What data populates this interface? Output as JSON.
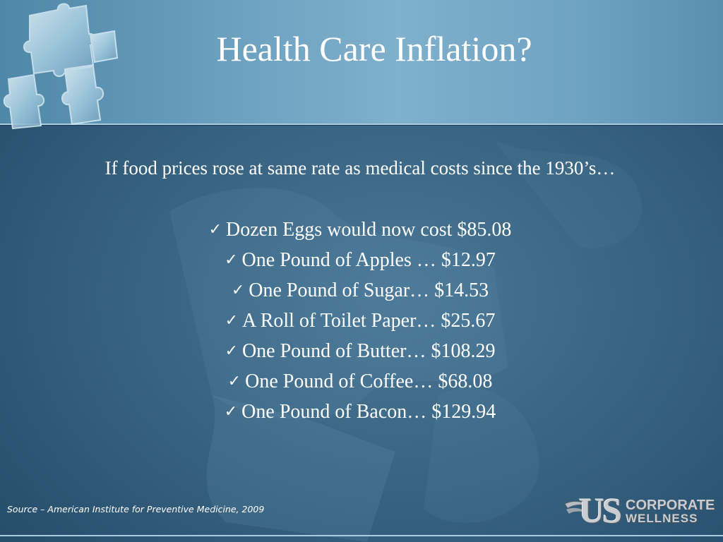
{
  "slide": {
    "title": "Health Care Inflation?",
    "intro": "If food prices rose at same rate as medical costs since the 1930’s…",
    "check_icon": "✓",
    "items": [
      "Dozen Eggs would now cost $85.08",
      "One Pound of Apples … $12.97",
      "One Pound of Sugar… $14.53",
      "A Roll of Toilet Paper… $25.67",
      "One Pound of Butter… $108.29",
      "One Pound of Coffee… $68.08",
      "One Pound of Bacon… $129.94"
    ],
    "source": "Source – American Institute for Preventive Medicine, 2009"
  },
  "logo": {
    "mark": "US",
    "line1": "CORPORATE",
    "line2": "WELLNESS"
  },
  "icons": {
    "header_graphic": "puzzle-pieces-icon",
    "bullet": "checkmark-icon"
  },
  "colors": {
    "background": "#2f5a78",
    "header": "#6a9fbe",
    "text": "#ffffff",
    "logo": "#c9ccd0"
  }
}
